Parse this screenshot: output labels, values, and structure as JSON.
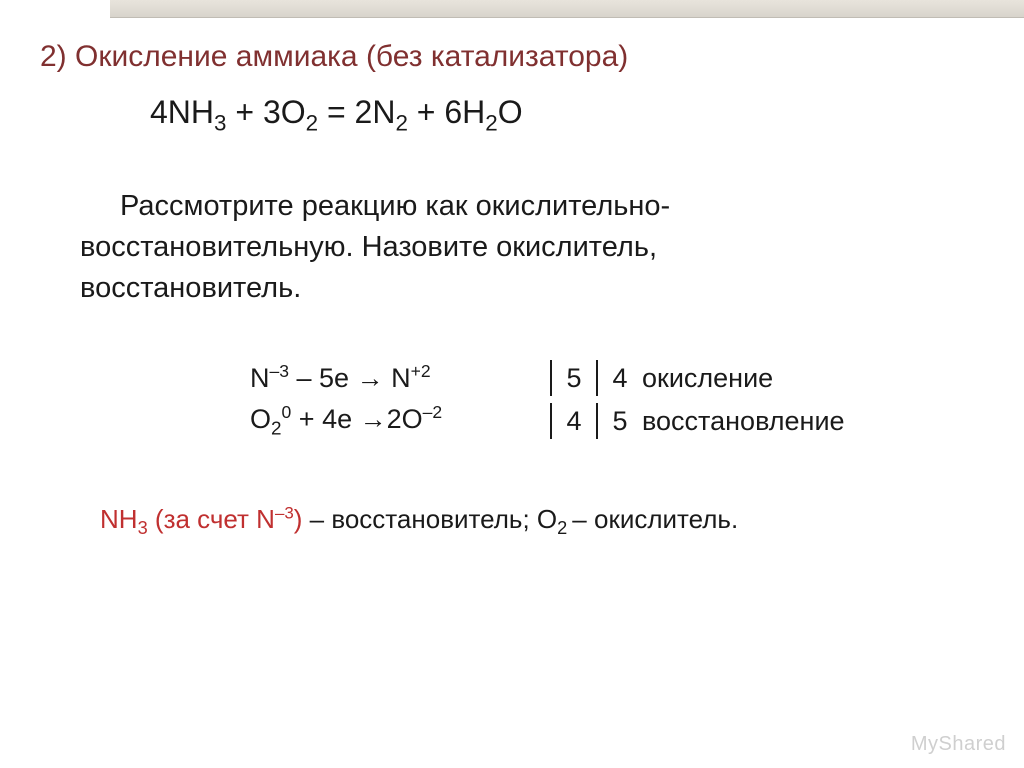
{
  "slide": {
    "heading": "2) Окисление аммиака (без катализатора)",
    "main_equation_html": "4NH<sub>3</sub> + 3O<sub>2</sub> = 2N<sub>2</sub> + 6H<sub>2</sub>O",
    "description_line1": "Рассмотрите реакцию как окислительно-",
    "description_line2": "восстановительную. Назовите окислитель,",
    "description_line3": "восстановитель.",
    "redox": {
      "row1_half_html": "N<sup>–3</sup> – 5e  → N<sup>+2</sup>",
      "row1_n1": "5",
      "row1_n2": "4",
      "row1_label": "окисление",
      "row2_half_html": "O<sub>2</sub><sup>0</sup> + 4e →2O<sup>–2</sup>",
      "row2_n1": "4",
      "row2_n2": "5",
      "row2_label": "восстановление"
    },
    "conclusion_html": "<span class=\"red-text\">NH<sub>3</sub> (за счет N<sup>–3</sup>)</span><span class=\"black-text\"> – восстановитель; O<sub>2 </sub>– окислитель.</span>"
  },
  "watermark": {
    "prefix": "My",
    "suffix": "Shared"
  },
  "colors": {
    "heading": "#803030",
    "body_text": "#1a1a1a",
    "accent_red": "#c03030",
    "background": "#ffffff",
    "topbar_from": "#e8e4dc",
    "topbar_to": "#d8d4cc",
    "watermark": "#cfcfcf"
  },
  "typography": {
    "heading_fontsize": 30,
    "equation_fontsize": 32,
    "description_fontsize": 29,
    "redox_fontsize": 27,
    "conclusion_fontsize": 26,
    "font_family": "Arial"
  }
}
